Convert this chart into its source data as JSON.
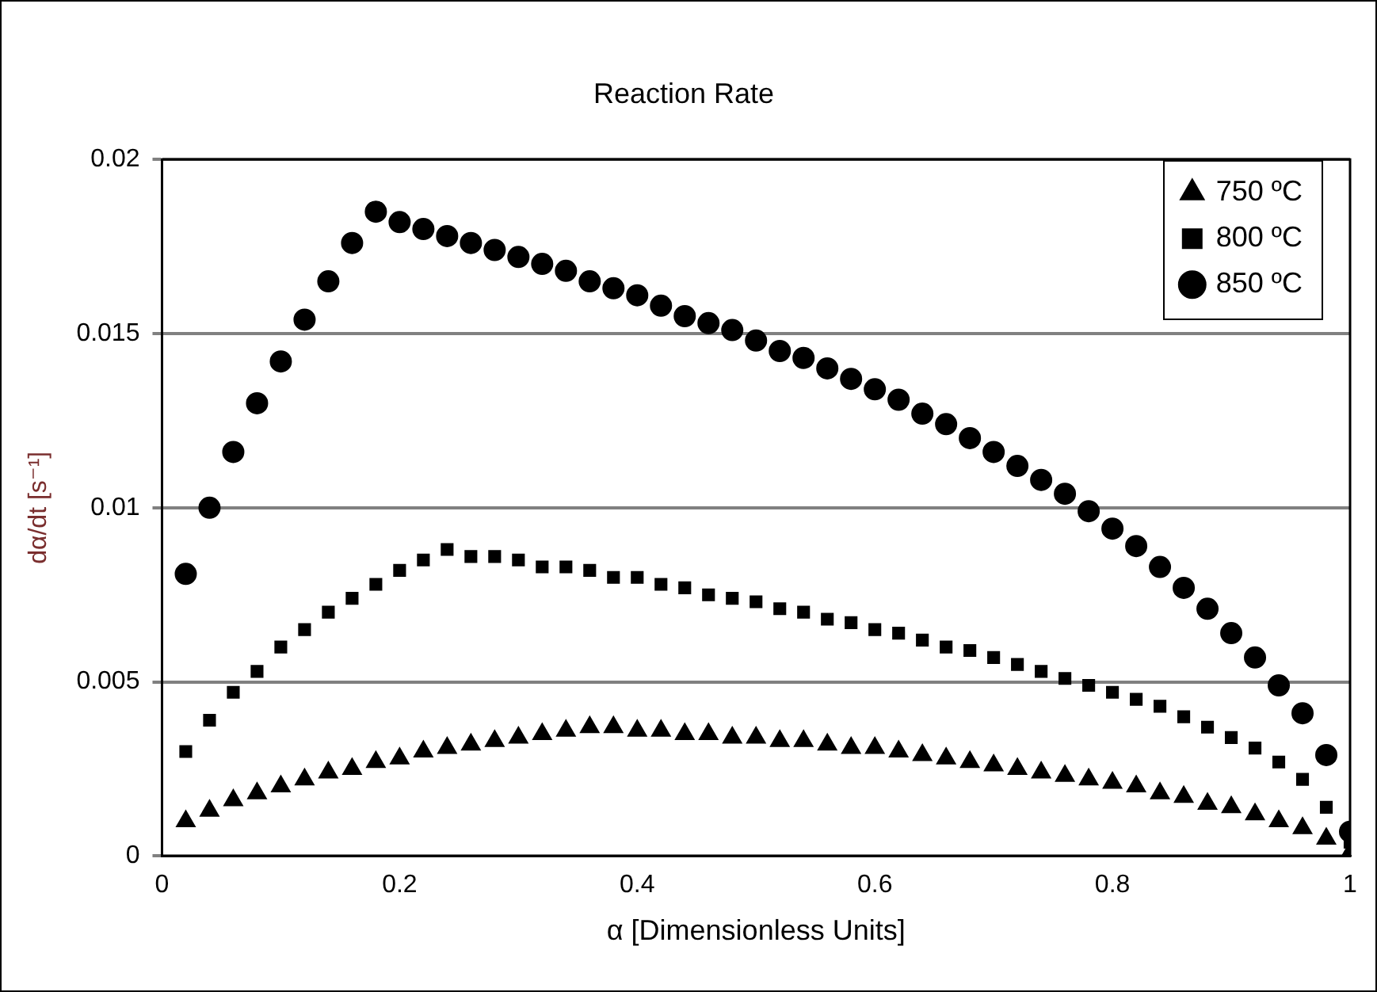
{
  "chart_data": {
    "type": "scatter",
    "title": "Reaction Rate",
    "xlabel": "α [Dimensionless Units]",
    "ylabel": "dα/dt [s⁻¹]",
    "x": [
      0.02,
      0.04,
      0.06,
      0.08,
      0.1,
      0.12,
      0.14,
      0.16,
      0.18,
      0.2,
      0.22,
      0.24,
      0.26,
      0.28,
      0.3,
      0.32,
      0.34,
      0.36,
      0.38,
      0.4,
      0.42,
      0.44,
      0.46,
      0.48,
      0.5,
      0.52,
      0.54,
      0.56,
      0.58,
      0.6,
      0.62,
      0.64,
      0.66,
      0.68,
      0.7,
      0.72,
      0.74,
      0.76,
      0.78,
      0.8,
      0.82,
      0.84,
      0.86,
      0.88,
      0.9,
      0.92,
      0.94,
      0.96,
      0.98,
      1.0
    ],
    "series": [
      {
        "name": "750 ºC",
        "color": "#000000",
        "marker": "triangle",
        "values": [
          0.001,
          0.0013,
          0.0016,
          0.0018,
          0.002,
          0.0022,
          0.0024,
          0.0025,
          0.0027,
          0.0028,
          0.003,
          0.0031,
          0.0032,
          0.0033,
          0.0034,
          0.0035,
          0.0036,
          0.0037,
          0.0037,
          0.0036,
          0.0036,
          0.0035,
          0.0035,
          0.0034,
          0.0034,
          0.0033,
          0.0033,
          0.0032,
          0.0031,
          0.0031,
          0.003,
          0.0029,
          0.0028,
          0.0027,
          0.0026,
          0.0025,
          0.0024,
          0.0023,
          0.0022,
          0.0021,
          0.002,
          0.0018,
          0.0017,
          0.0015,
          0.0014,
          0.0012,
          0.001,
          0.0008,
          0.0005,
          0.0001
        ]
      },
      {
        "name": "800 ºC",
        "color": "#000000",
        "marker": "square",
        "values": [
          0.003,
          0.0039,
          0.0047,
          0.0053,
          0.006,
          0.0065,
          0.007,
          0.0074,
          0.0078,
          0.0082,
          0.0085,
          0.0088,
          0.0086,
          0.0086,
          0.0085,
          0.0083,
          0.0083,
          0.0082,
          0.008,
          0.008,
          0.0078,
          0.0077,
          0.0075,
          0.0074,
          0.0073,
          0.0071,
          0.007,
          0.0068,
          0.0067,
          0.0065,
          0.0064,
          0.0062,
          0.006,
          0.0059,
          0.0057,
          0.0055,
          0.0053,
          0.0051,
          0.0049,
          0.0047,
          0.0045,
          0.0043,
          0.004,
          0.0037,
          0.0034,
          0.0031,
          0.0027,
          0.0022,
          0.0014,
          0.0004
        ]
      },
      {
        "name": "850 ºC",
        "color": "#000000",
        "marker": "circle",
        "values": [
          0.0081,
          0.01,
          0.0116,
          0.013,
          0.0142,
          0.0154,
          0.0165,
          0.0176,
          0.0185,
          0.0182,
          0.018,
          0.0178,
          0.0176,
          0.0174,
          0.0172,
          0.017,
          0.0168,
          0.0165,
          0.0163,
          0.0161,
          0.0158,
          0.0155,
          0.0153,
          0.0151,
          0.0148,
          0.0145,
          0.0143,
          0.014,
          0.0137,
          0.0134,
          0.0131,
          0.0127,
          0.0124,
          0.012,
          0.0116,
          0.0112,
          0.0108,
          0.0104,
          0.0099,
          0.0094,
          0.0089,
          0.0083,
          0.0077,
          0.0071,
          0.0064,
          0.0057,
          0.0049,
          0.0041,
          0.0029,
          0.0007
        ]
      }
    ],
    "xlim": [
      0,
      1
    ],
    "xticks": [
      0,
      0.2,
      0.4,
      0.6,
      0.8,
      1
    ],
    "ylim": [
      0,
      0.02
    ],
    "yticks": [
      0,
      0.005,
      0.01,
      0.015,
      0.02
    ],
    "grid": "y",
    "legend": "top right"
  }
}
